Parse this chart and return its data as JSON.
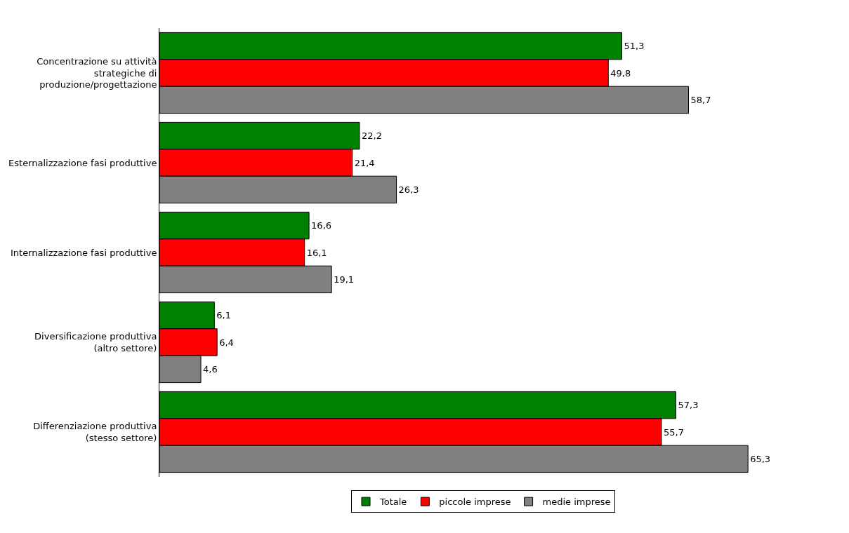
{
  "chart_data": {
    "type": "bar",
    "orientation": "horizontal",
    "categories": [
      "Concentrazione su attività strategiche di produzione/progettazione",
      "Esternalizzazione fasi produttive",
      "Internalizzazione fasi produttive",
      "Diversificazione produttiva (altro settore)",
      "Differenziazione produttiva (stesso settore)"
    ],
    "series": [
      {
        "name": "Totale",
        "color": "#008000",
        "values": [
          51.3,
          22.2,
          16.6,
          6.1,
          57.3
        ],
        "value_labels": [
          "51,3",
          "22,2",
          "16,6",
          "6,1",
          "57,3"
        ]
      },
      {
        "name": "piccole imprese",
        "color": "#ff0000",
        "values": [
          49.8,
          21.4,
          16.1,
          6.4,
          55.7
        ],
        "value_labels": [
          "49,8",
          "21,4",
          "16,1",
          "6,4",
          "55,7"
        ]
      },
      {
        "name": "medie imprese",
        "color": "#808080",
        "values": [
          58.7,
          26.3,
          19.1,
          4.6,
          65.3
        ],
        "value_labels": [
          "58,7",
          "26,3",
          "19,1",
          "4,6",
          "65,3"
        ]
      }
    ],
    "legend": "bottom"
  }
}
